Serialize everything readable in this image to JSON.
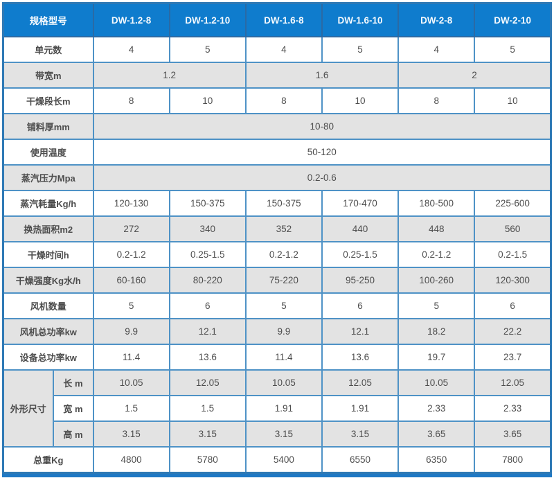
{
  "table": {
    "header": {
      "label": "规格型号",
      "models": [
        "DW-1.2-8",
        "DW-1.2-10",
        "DW-1.6-8",
        "DW-1.6-10",
        "DW-2-8",
        "DW-2-10"
      ]
    },
    "rows": [
      {
        "label": "单元数",
        "cells": [
          "4",
          "5",
          "4",
          "5",
          "4",
          "5"
        ]
      },
      {
        "label": "带宽m",
        "cells": [
          {
            "v": "1.2",
            "span": 2
          },
          {
            "v": "1.6",
            "span": 2
          },
          {
            "v": "2",
            "span": 2
          }
        ]
      },
      {
        "label": "干燥段长m",
        "cells": [
          "8",
          "10",
          "8",
          "10",
          "8",
          "10"
        ]
      },
      {
        "label": "铺料厚mm",
        "cells": [
          {
            "v": "10-80",
            "span": 6
          }
        ]
      },
      {
        "label": "使用温度",
        "cells": [
          {
            "v": "50-120",
            "span": 6
          }
        ]
      },
      {
        "label": "蒸汽压力Mpa",
        "cells": [
          {
            "v": "0.2-0.6",
            "span": 6
          }
        ]
      },
      {
        "label": "蒸汽耗量Kg/h",
        "cells": [
          "120-130",
          "150-375",
          "150-375",
          "170-470",
          "180-500",
          "225-600"
        ]
      },
      {
        "label": "换热面积m2",
        "cells": [
          "272",
          "340",
          "352",
          "440",
          "448",
          "560"
        ]
      },
      {
        "label": "干燥时间h",
        "cells": [
          "0.2-1.2",
          "0.25-1.5",
          "0.2-1.2",
          "0.25-1.5",
          "0.2-1.2",
          "0.2-1.5"
        ]
      },
      {
        "label": "干燥强度Kg水/h",
        "cells": [
          "60-160",
          "80-220",
          "75-220",
          "95-250",
          "100-260",
          "120-300"
        ]
      },
      {
        "label": "风机数量",
        "cells": [
          "5",
          "6",
          "5",
          "6",
          "5",
          "6"
        ]
      },
      {
        "label": "风机总功率kw",
        "cells": [
          "9.9",
          "12.1",
          "9.9",
          "12.1",
          "18.2",
          "22.2"
        ]
      },
      {
        "label": "设备总功率kw",
        "cells": [
          "11.4",
          "13.6",
          "11.4",
          "13.6",
          "19.7",
          "23.7"
        ]
      },
      {
        "group": "外形尺寸",
        "group_span": 3,
        "sub": "长 m",
        "cells": [
          "10.05",
          "12.05",
          "10.05",
          "12.05",
          "10.05",
          "12.05"
        ]
      },
      {
        "sub": "宽 m",
        "cells": [
          "1.5",
          "1.5",
          "1.91",
          "1.91",
          "2.33",
          "2.33"
        ]
      },
      {
        "sub": "高 m",
        "cells": [
          "3.15",
          "3.15",
          "3.15",
          "3.15",
          "3.65",
          "3.65"
        ]
      },
      {
        "label": "总重Kg",
        "cells": [
          "4800",
          "5780",
          "5400",
          "6550",
          "6350",
          "7800"
        ]
      }
    ]
  },
  "colors": {
    "header_bg": "#0f7ccd",
    "header_text": "#f4f9fd",
    "cell_border": "#4e92c6",
    "outer_border": "#2e79b5",
    "row_alt_bg": "#e3e3e3",
    "text": "#4d4d4d",
    "bottom_bar": "#1e78c4"
  }
}
